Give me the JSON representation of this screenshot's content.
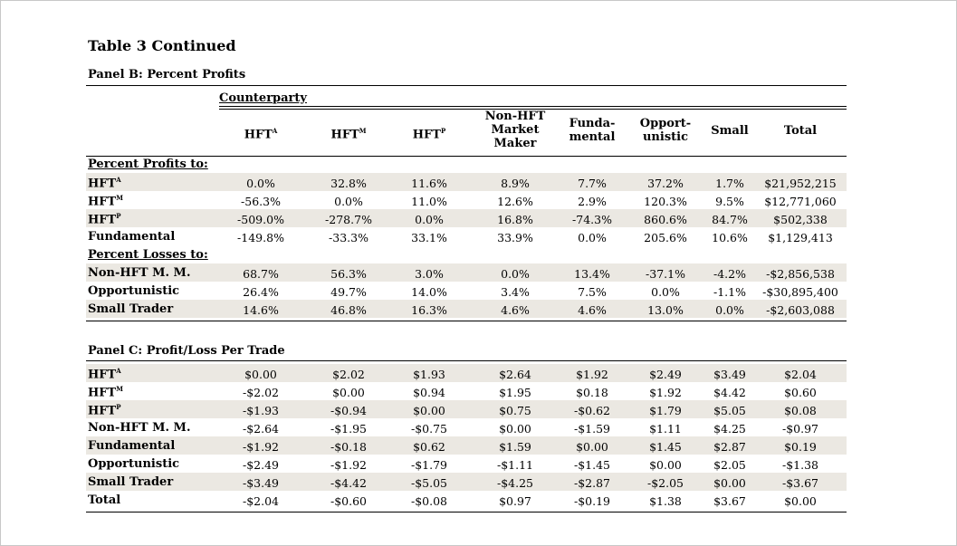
{
  "table_title": "Table 3 Continued",
  "panel_b": {
    "title": "Panel B: Percent Profits",
    "counterparty_label": "Counterparty",
    "columns": [
      {
        "label": "HFT",
        "sup": "A"
      },
      {
        "label": "HFT",
        "sup": "M"
      },
      {
        "label": "HFT",
        "sup": "P"
      },
      {
        "label": "Non-HFT\nMarket\nMaker",
        "sup": ""
      },
      {
        "label": "Funda-\nmental",
        "sup": ""
      },
      {
        "label": "Opport-\nunistic",
        "sup": ""
      },
      {
        "label": "Small",
        "sup": ""
      },
      {
        "label": "Total",
        "sup": ""
      }
    ],
    "section_profits": "Percent Profits to:",
    "section_losses": "Percent Losses to:",
    "profit_rows": [
      {
        "label": "HFT",
        "sup": "A",
        "shaded": true,
        "values": [
          "0.0%",
          "32.8%",
          "11.6%",
          "8.9%",
          "7.7%",
          "37.2%",
          "1.7%",
          "$21,952,215"
        ]
      },
      {
        "label": "HFT",
        "sup": "M",
        "shaded": false,
        "values": [
          "-56.3%",
          "0.0%",
          "11.0%",
          "12.6%",
          "2.9%",
          "120.3%",
          "9.5%",
          "$12,771,060"
        ]
      },
      {
        "label": "HFT",
        "sup": "P",
        "shaded": true,
        "values": [
          "-509.0%",
          "-278.7%",
          "0.0%",
          "16.8%",
          "-74.3%",
          "860.6%",
          "84.7%",
          "$502,338"
        ]
      },
      {
        "label": "Fundamental",
        "sup": "",
        "shaded": false,
        "values": [
          "-149.8%",
          "-33.3%",
          "33.1%",
          "33.9%",
          "0.0%",
          "205.6%",
          "10.6%",
          "$1,129,413"
        ]
      }
    ],
    "loss_rows": [
      {
        "label": "Non-HFT M. M.",
        "sup": "",
        "shaded": true,
        "values": [
          "68.7%",
          "56.3%",
          "3.0%",
          "0.0%",
          "13.4%",
          "-37.1%",
          "-4.2%",
          "-$2,856,538"
        ]
      },
      {
        "label": "Opportunistic",
        "sup": "",
        "shaded": false,
        "values": [
          "26.4%",
          "49.7%",
          "14.0%",
          "3.4%",
          "7.5%",
          "0.0%",
          "-1.1%",
          "-$30,895,400"
        ]
      },
      {
        "label": "Small Trader",
        "sup": "",
        "shaded": true,
        "values": [
          "14.6%",
          "46.8%",
          "16.3%",
          "4.6%",
          "4.6%",
          "13.0%",
          "0.0%",
          "-$2,603,088"
        ]
      }
    ]
  },
  "panel_c": {
    "title": "Panel C: Profit/Loss Per Trade",
    "rows": [
      {
        "label": "HFT",
        "sup": "A",
        "shaded": true,
        "values": [
          "$0.00",
          "$2.02",
          "$1.93",
          "$2.64",
          "$1.92",
          "$2.49",
          "$3.49",
          "$2.04"
        ]
      },
      {
        "label": "HFT",
        "sup": "M",
        "shaded": false,
        "values": [
          "-$2.02",
          "$0.00",
          "$0.94",
          "$1.95",
          "$0.18",
          "$1.92",
          "$4.42",
          "$0.60"
        ]
      },
      {
        "label": "HFT",
        "sup": "P",
        "shaded": true,
        "values": [
          "-$1.93",
          "-$0.94",
          "$0.00",
          "$0.75",
          "-$0.62",
          "$1.79",
          "$5.05",
          "$0.08"
        ]
      },
      {
        "label": "Non-HFT M. M.",
        "sup": "",
        "shaded": false,
        "values": [
          "-$2.64",
          "-$1.95",
          "-$0.75",
          "$0.00",
          "-$1.59",
          "$1.11",
          "$4.25",
          "-$0.97"
        ]
      },
      {
        "label": "Fundamental",
        "sup": "",
        "shaded": true,
        "values": [
          "-$1.92",
          "-$0.18",
          "$0.62",
          "$1.59",
          "$0.00",
          "$1.45",
          "$2.87",
          "$0.19"
        ]
      },
      {
        "label": "Opportunistic",
        "sup": "",
        "shaded": false,
        "values": [
          "-$2.49",
          "-$1.92",
          "-$1.79",
          "-$1.11",
          "-$1.45",
          "$0.00",
          "$2.05",
          "-$1.38"
        ]
      },
      {
        "label": "Small Trader",
        "sup": "",
        "shaded": true,
        "values": [
          "-$3.49",
          "-$4.42",
          "-$5.05",
          "-$4.25",
          "-$2.87",
          "-$2.05",
          "$0.00",
          "-$3.67"
        ]
      },
      {
        "label": "Total",
        "sup": "",
        "shaded": false,
        "values": [
          "-$2.04",
          "-$0.60",
          "-$0.08",
          "$0.97",
          "-$0.19",
          "$1.38",
          "$3.67",
          "$0.00"
        ]
      }
    ]
  },
  "colors": {
    "shade": "#ebe8e2",
    "border": "#c8c8c8"
  }
}
